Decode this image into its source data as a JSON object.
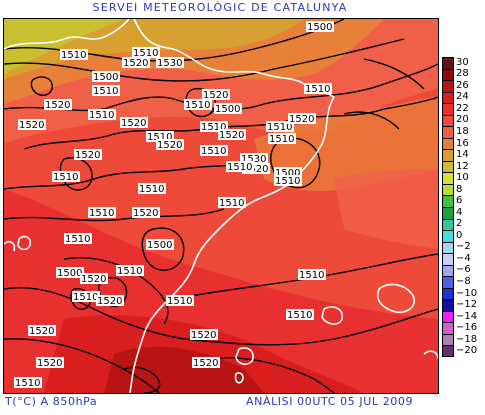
{
  "header": {
    "title": "SERVEI METEOROLÒGIC DE CATALUNYA"
  },
  "footer": {
    "left": "T(°C) A 850hPa",
    "right": "ANÀLISI 00UTC 05 JUL 2009"
  },
  "legend": {
    "items": [
      {
        "label": "30",
        "color": "#5e1414"
      },
      {
        "label": "28",
        "color": "#8c0c0c"
      },
      {
        "label": "26",
        "color": "#b81414"
      },
      {
        "label": "24",
        "color": "#d81e1e"
      },
      {
        "label": "22",
        "color": "#e83030"
      },
      {
        "label": "20",
        "color": "#ee4a3a"
      },
      {
        "label": "18",
        "color": "#f06048"
      },
      {
        "label": "16",
        "color": "#e8803a"
      },
      {
        "label": "14",
        "color": "#d8a030"
      },
      {
        "label": "12",
        "color": "#c8c030"
      },
      {
        "label": "10",
        "color": "#d8e030"
      },
      {
        "label": "8",
        "color": "#b8e030"
      },
      {
        "label": "6",
        "color": "#40c040"
      },
      {
        "label": "4",
        "color": "#20a040"
      },
      {
        "label": "2",
        "color": "#30c8a0"
      },
      {
        "label": "0",
        "color": "#40e0e0"
      },
      {
        "label": "−2",
        "color": "#a0d8f0"
      },
      {
        "label": "−4",
        "color": "#c8d0f8"
      },
      {
        "label": "−6",
        "color": "#a0a8f0"
      },
      {
        "label": "−8",
        "color": "#5060e0"
      },
      {
        "label": "−10",
        "color": "#2030d0"
      },
      {
        "label": "−12",
        "color": "#1010a0"
      },
      {
        "label": "−14",
        "color": "#f020f0"
      },
      {
        "label": "−16",
        "color": "#d060d0"
      },
      {
        "label": "−18",
        "color": "#b080b0"
      },
      {
        "label": "−20",
        "color": "#603070"
      }
    ]
  },
  "map": {
    "contour_labels": [
      {
        "text": "1510"
      },
      {
        "text": "1520"
      },
      {
        "text": "1530"
      },
      {
        "text": "1510"
      },
      {
        "text": "1500"
      },
      {
        "text": "1500"
      },
      {
        "text": "1510"
      },
      {
        "text": "1510"
      },
      {
        "text": "1520"
      },
      {
        "text": "1520"
      },
      {
        "text": "1510"
      },
      {
        "text": "1500"
      },
      {
        "text": "1510"
      },
      {
        "text": "1520"
      },
      {
        "text": "1510"
      },
      {
        "text": "1520"
      },
      {
        "text": "1510"
      },
      {
        "text": "1520"
      },
      {
        "text": "1520"
      },
      {
        "text": "1510"
      },
      {
        "text": "1510"
      },
      {
        "text": "1520"
      },
      {
        "text": "1510"
      },
      {
        "text": "1530"
      },
      {
        "text": "1520"
      },
      {
        "text": "1500"
      },
      {
        "text": "1510"
      },
      {
        "text": "1510"
      },
      {
        "text": "1510"
      },
      {
        "text": "1520"
      },
      {
        "text": "1510"
      },
      {
        "text": "1510"
      },
      {
        "text": "1500"
      },
      {
        "text": "1510"
      },
      {
        "text": "1510"
      },
      {
        "text": "1520"
      },
      {
        "text": "1500"
      },
      {
        "text": "1520"
      },
      {
        "text": "1510"
      },
      {
        "text": "1510"
      },
      {
        "text": "1520"
      },
      {
        "text": "1510"
      },
      {
        "text": "1510"
      },
      {
        "text": "1520"
      },
      {
        "text": "1520"
      },
      {
        "text": "1510"
      },
      {
        "text": "1520"
      },
      {
        "text": "1520"
      },
      {
        "text": "1510"
      }
    ]
  }
}
